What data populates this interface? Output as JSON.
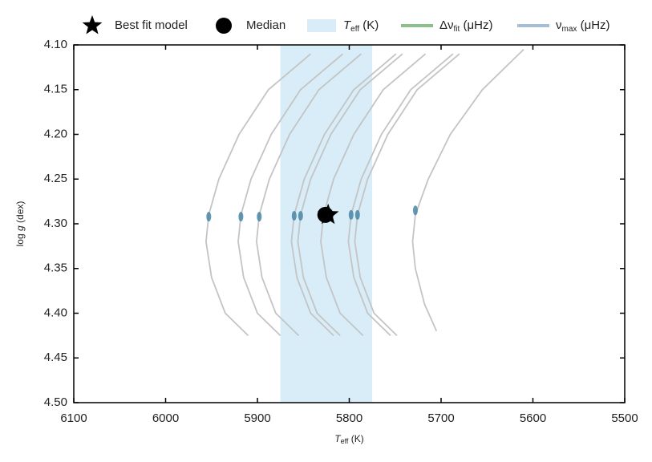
{
  "chart_data": {
    "type": "line",
    "xlabel": {
      "main": "T",
      "sub": "eff",
      "rest": " (K)"
    },
    "ylabel": {
      "pre": "log ",
      "italic": "g",
      "rest": " (dex)"
    },
    "xlim": [
      6100,
      5500
    ],
    "xticks": [
      6100,
      6000,
      5900,
      5800,
      5700,
      5600,
      5500
    ],
    "ylim": [
      4.1,
      4.5
    ],
    "yticks": [
      {
        "value": 4.1,
        "label": "4.10"
      },
      4.15,
      {
        "value": 4.2,
        "label": "4.20"
      },
      4.25,
      {
        "value": 4.3,
        "label": "4.30"
      },
      4.35,
      {
        "value": 4.4,
        "label": "4.40"
      },
      4.45,
      {
        "value": 4.5,
        "label": "4.50"
      }
    ],
    "y_inverted": true,
    "track_color": "#c4c4c4",
    "tracks": [
      {
        "x": [
          5910,
          5935,
          5950,
          5956,
          5953,
          5942,
          5920,
          5888,
          5842
        ],
        "y": [
          4.425,
          4.4,
          4.36,
          4.32,
          4.29,
          4.25,
          4.2,
          4.15,
          4.11
        ]
      },
      {
        "x": [
          5875,
          5900,
          5915,
          5921,
          5918,
          5907,
          5885,
          5853,
          5807
        ],
        "y": [
          4.425,
          4.4,
          4.36,
          4.32,
          4.29,
          4.25,
          4.2,
          4.15,
          4.11
        ]
      },
      {
        "x": [
          5855,
          5880,
          5895,
          5901,
          5898,
          5887,
          5865,
          5833,
          5787
        ],
        "y": [
          4.425,
          4.4,
          4.36,
          4.32,
          4.29,
          4.25,
          4.2,
          4.15,
          4.11
        ]
      },
      {
        "x": [
          5817,
          5842,
          5857,
          5863,
          5860,
          5849,
          5827,
          5795,
          5749
        ],
        "y": [
          4.425,
          4.4,
          4.36,
          4.32,
          4.29,
          4.25,
          4.2,
          4.15,
          4.11
        ]
      },
      {
        "x": [
          5810,
          5835,
          5850,
          5856,
          5853,
          5842,
          5820,
          5788,
          5742
        ],
        "y": [
          4.425,
          4.4,
          4.36,
          4.32,
          4.29,
          4.25,
          4.2,
          4.15,
          4.11
        ]
      },
      {
        "x": [
          5785,
          5810,
          5825,
          5831,
          5828,
          5817,
          5795,
          5763,
          5717
        ],
        "y": [
          4.425,
          4.4,
          4.36,
          4.32,
          4.29,
          4.25,
          4.2,
          4.15,
          4.11
        ]
      },
      {
        "x": [
          5755,
          5780,
          5795,
          5801,
          5798,
          5787,
          5765,
          5733,
          5687
        ],
        "y": [
          4.425,
          4.4,
          4.36,
          4.32,
          4.29,
          4.25,
          4.2,
          4.15,
          4.11
        ]
      },
      {
        "x": [
          5748,
          5773,
          5788,
          5794,
          5791,
          5780,
          5758,
          5726,
          5680
        ],
        "y": [
          4.425,
          4.4,
          4.36,
          4.32,
          4.29,
          4.25,
          4.2,
          4.15,
          4.11
        ]
      },
      {
        "x": [
          5705,
          5718,
          5728,
          5731,
          5728,
          5714,
          5690,
          5655,
          5610
        ],
        "y": [
          4.42,
          4.39,
          4.35,
          4.32,
          4.29,
          4.25,
          4.2,
          4.15,
          4.105
        ]
      }
    ],
    "models": {
      "color": "#4a86a6",
      "x": [
        5953,
        5918,
        5898,
        5860,
        5853,
        5828,
        5798,
        5791,
        5728
      ],
      "y": [
        4.292,
        4.292,
        4.292,
        4.291,
        4.291,
        4.291,
        4.29,
        4.29,
        4.285
      ]
    },
    "teff_band": {
      "range": [
        5875,
        5775
      ],
      "color": "#d8edf8"
    },
    "best_fit": {
      "x": 5823,
      "y": 4.29
    },
    "median": {
      "x": 5826,
      "y": 4.29
    },
    "legend": [
      {
        "kind": "star",
        "color": "#000000",
        "label": {
          "main": "Best fit model"
        }
      },
      {
        "kind": "circle",
        "color": "#000000",
        "label": {
          "main": "Median"
        }
      },
      {
        "kind": "band",
        "color": "#d8edf8",
        "label": {
          "main": "T",
          "sub": "eff",
          "rest": " (K)",
          "italic": true
        }
      },
      {
        "kind": "line",
        "color": "#8cc08c",
        "label": {
          "main": "Δν",
          "sub": "fit",
          "rest": " (μHz)"
        }
      },
      {
        "kind": "line",
        "color": "#a6bdd6",
        "label": {
          "main": "ν",
          "sub": "max",
          "rest": " (μHz)"
        }
      }
    ]
  }
}
